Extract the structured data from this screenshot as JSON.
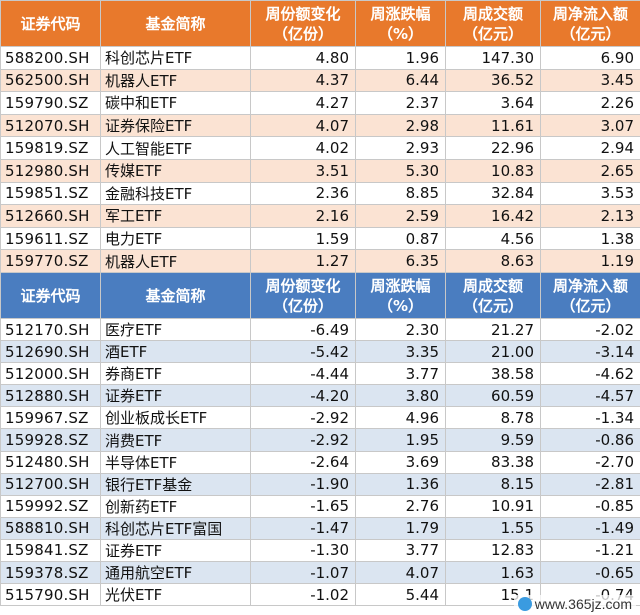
{
  "headers": [
    "证券代码",
    "基金简称",
    "周份额变化\n（亿份）",
    "周涨跌幅\n（%）",
    "周成交额\n（亿元）",
    "周净流入额\n（亿元）"
  ],
  "inflow_table": {
    "headers": {
      "code": "证券代码",
      "name": "基金简称",
      "share_change_l1": "周份额变化",
      "share_change_l2": "（亿份）",
      "pct_l1": "周涨跌幅",
      "pct_l2": "（%）",
      "turnover_l1": "周成交额",
      "turnover_l2": "（亿元）",
      "net_inflow_l1": "周净流入额",
      "net_inflow_l2": "（亿元）"
    },
    "rows": [
      {
        "code": "588200.SH",
        "name": "科创芯片ETF",
        "share_change": "4.80",
        "pct": "1.96",
        "turnover": "147.30",
        "net_inflow": "6.90"
      },
      {
        "code": "562500.SH",
        "name": "机器人ETF",
        "share_change": "4.37",
        "pct": "6.44",
        "turnover": "36.52",
        "net_inflow": "3.45"
      },
      {
        "code": "159790.SZ",
        "name": "碳中和ETF",
        "share_change": "4.27",
        "pct": "2.37",
        "turnover": "3.64",
        "net_inflow": "2.26"
      },
      {
        "code": "512070.SH",
        "name": "证券保险ETF",
        "share_change": "4.07",
        "pct": "2.98",
        "turnover": "11.61",
        "net_inflow": "3.07"
      },
      {
        "code": "159819.SZ",
        "name": "人工智能ETF",
        "share_change": "4.02",
        "pct": "2.93",
        "turnover": "22.96",
        "net_inflow": "2.94"
      },
      {
        "code": "512980.SH",
        "name": "传媒ETF",
        "share_change": "3.51",
        "pct": "5.30",
        "turnover": "10.83",
        "net_inflow": "2.65"
      },
      {
        "code": "159851.SZ",
        "name": "金融科技ETF",
        "share_change": "2.36",
        "pct": "8.85",
        "turnover": "32.84",
        "net_inflow": "3.53"
      },
      {
        "code": "512660.SH",
        "name": "军工ETF",
        "share_change": "2.16",
        "pct": "2.59",
        "turnover": "16.42",
        "net_inflow": "2.13"
      },
      {
        "code": "159611.SZ",
        "name": "电力ETF",
        "share_change": "1.59",
        "pct": "0.87",
        "turnover": "4.56",
        "net_inflow": "1.38"
      },
      {
        "code": "159770.SZ",
        "name": "机器人ETF",
        "share_change": "1.27",
        "pct": "6.35",
        "turnover": "8.63",
        "net_inflow": "1.19"
      }
    ]
  },
  "outflow_table": {
    "headers": {
      "code": "证券代码",
      "name": "基金简称",
      "share_change_l1": "周份额变化",
      "share_change_l2": "（亿份）",
      "pct_l1": "周涨跌幅",
      "pct_l2": "（%）",
      "turnover_l1": "周成交额",
      "turnover_l2": "（亿元）",
      "net_inflow_l1": "周净流入额",
      "net_inflow_l2": "（亿元）"
    },
    "rows": [
      {
        "code": "512170.SH",
        "name": "医疗ETF",
        "share_change": "-6.49",
        "pct": "2.30",
        "turnover": "21.27",
        "net_inflow": "-2.02"
      },
      {
        "code": "512690.SH",
        "name": "酒ETF",
        "share_change": "-5.42",
        "pct": "3.35",
        "turnover": "21.00",
        "net_inflow": "-3.14"
      },
      {
        "code": "512000.SH",
        "name": "券商ETF",
        "share_change": "-4.44",
        "pct": "3.77",
        "turnover": "38.58",
        "net_inflow": "-4.62"
      },
      {
        "code": "512880.SH",
        "name": "证券ETF",
        "share_change": "-4.20",
        "pct": "3.80",
        "turnover": "60.59",
        "net_inflow": "-4.57"
      },
      {
        "code": "159967.SZ",
        "name": "创业板成长ETF",
        "share_change": "-2.92",
        "pct": "4.96",
        "turnover": "8.78",
        "net_inflow": "-1.34"
      },
      {
        "code": "159928.SZ",
        "name": "消费ETF",
        "share_change": "-2.92",
        "pct": "1.95",
        "turnover": "9.59",
        "net_inflow": "-0.86"
      },
      {
        "code": "512480.SH",
        "name": "半导体ETF",
        "share_change": "-2.64",
        "pct": "3.69",
        "turnover": "83.38",
        "net_inflow": "-2.70"
      },
      {
        "code": "512700.SH",
        "name": "银行ETF基金",
        "share_change": "-1.90",
        "pct": "1.36",
        "turnover": "8.15",
        "net_inflow": "-2.81"
      },
      {
        "code": "159992.SZ",
        "name": "创新药ETF",
        "share_change": "-1.65",
        "pct": "2.76",
        "turnover": "10.91",
        "net_inflow": "-0.85"
      },
      {
        "code": "588810.SH",
        "name": "科创芯片ETF富国",
        "share_change": "-1.47",
        "pct": "1.79",
        "turnover": "1.55",
        "net_inflow": "-1.49"
      },
      {
        "code": "159841.SZ",
        "name": "证券ETF",
        "share_change": "-1.30",
        "pct": "3.77",
        "turnover": "12.83",
        "net_inflow": "-1.21"
      },
      {
        "code": "159378.SZ",
        "name": "通用航空ETF",
        "share_change": "-1.07",
        "pct": "4.07",
        "turnover": "1.63",
        "net_inflow": "-0.65"
      },
      {
        "code": "515790.SH",
        "name": "光伏ETF",
        "share_change": "-1.02",
        "pct": "5.44",
        "turnover": "15.1",
        "net_inflow": "-0.74"
      }
    ]
  },
  "watermark": {
    "text": "www.365jz.com"
  },
  "colors": {
    "inflow_header": "#e8792c",
    "inflow_stripe": "#fbe3d3",
    "outflow_header": "#4a7dc0",
    "outflow_stripe": "#dbe5f1"
  }
}
